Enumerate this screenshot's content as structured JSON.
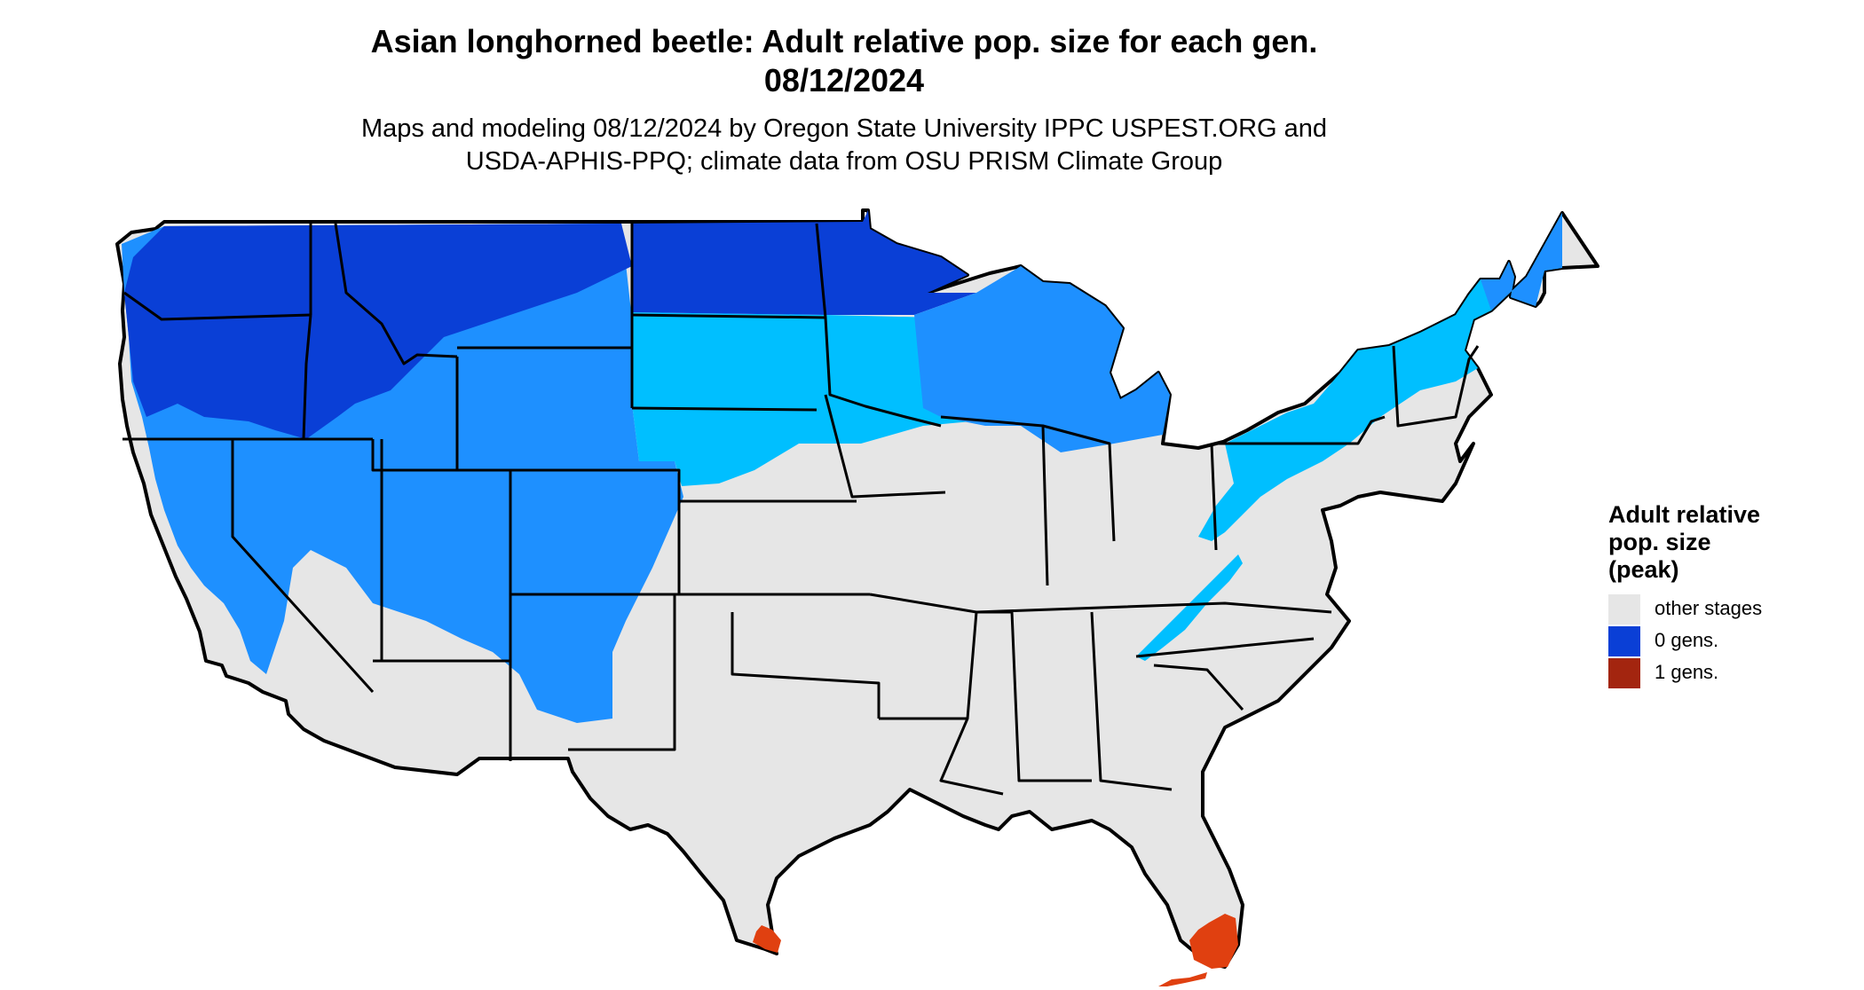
{
  "title": {
    "line1": "Asian longhorned beetle: Adult relative pop. size for each gen.",
    "line2": "08/12/2024"
  },
  "subtitle": {
    "line1": "Maps and modeling 08/12/2024 by Oregon State University IPPC USPEST.ORG and",
    "line2": "USDA-APHIS-PPQ; climate data from OSU PRISM Climate Group"
  },
  "legend": {
    "title_lines": [
      "Adult relative",
      "pop. size",
      "(peak)"
    ],
    "items": [
      {
        "label": "other stages",
        "color": "#e6e6e6"
      },
      {
        "label": "0 gens.",
        "color": "#0a3fd6"
      },
      {
        "label": "1 gens.",
        "color": "#a3250f"
      }
    ]
  },
  "map": {
    "region": "contiguous United States",
    "colors": {
      "other_stages": "#e6e6e6",
      "zero_gens_light": "#00bfff",
      "zero_gens_mid": "#1e90ff",
      "zero_gens_dark": "#0a3fd6",
      "one_gen": "#e04010",
      "state_borders": "#000000"
    }
  }
}
